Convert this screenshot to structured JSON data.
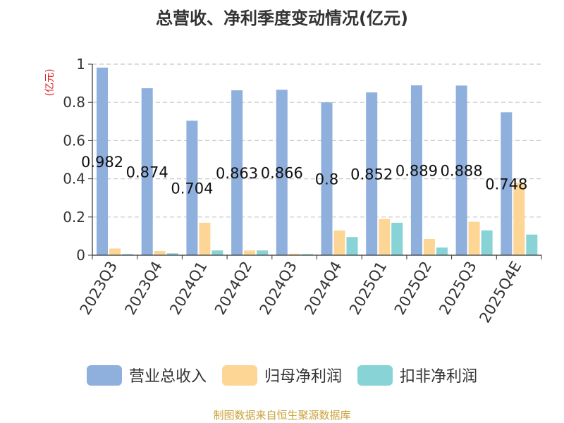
{
  "chart_data": {
    "type": "bar",
    "title": "总营收、净利季度变动情况(亿元)",
    "ylabel": "(亿元)",
    "ylim": [
      0,
      1
    ],
    "yticks": [
      0,
      0.2,
      0.4,
      0.6,
      0.8,
      1
    ],
    "ytick_labels": [
      "0",
      "0.2",
      "0.4",
      "0.6",
      "0.8",
      "1"
    ],
    "grid": true,
    "legend_position": "bottom",
    "categories": [
      "2023Q3",
      "2023Q4",
      "2024Q1",
      "2024Q2",
      "2024Q3",
      "2024Q4",
      "2025Q1",
      "2025Q2",
      "2025Q3",
      "2025Q4E"
    ],
    "series": [
      {
        "name": "营业总收入",
        "color": "#8fb0dc",
        "values": [
          0.982,
          0.874,
          0.704,
          0.863,
          0.866,
          0.8,
          0.852,
          0.889,
          0.888,
          0.748
        ],
        "labels": [
          "0.982",
          "0.874",
          "0.704",
          "0.863",
          "0.866",
          "0.8",
          "0.852",
          "0.889",
          "0.888",
          "0.748"
        ]
      },
      {
        "name": "归母净利润",
        "color": "#fdd696",
        "values": [
          0.035,
          0.022,
          0.17,
          0.025,
          0.008,
          0.13,
          0.19,
          0.085,
          0.175,
          0.38
        ]
      },
      {
        "name": "扣非净利润",
        "color": "#87d3d6",
        "values": [
          0.006,
          0.01,
          0.025,
          0.025,
          0.006,
          0.095,
          0.17,
          0.04,
          0.13,
          0.108
        ]
      }
    ]
  },
  "source": "制图数据来自恒生聚源数据库"
}
